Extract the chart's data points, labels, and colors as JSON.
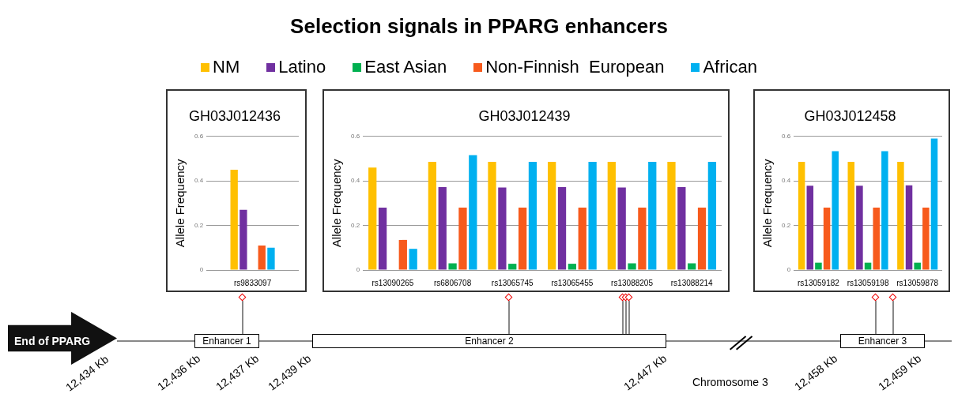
{
  "chart_data": [
    {
      "type": "other",
      "title": "Selection signals in PPARG enhancers"
    },
    {
      "type": "bar",
      "title": "GH03J012436",
      "ylabel": "Allele Frequency",
      "categories": [
        "rs9833097"
      ],
      "ylim": [
        0,
        0.6
      ],
      "yticks": [
        0,
        0.2,
        0.4,
        0.6
      ],
      "grid": "y",
      "legend": "top",
      "series": [
        {
          "name": "NM",
          "color": "#ffc000",
          "values": [
            0.45
          ]
        },
        {
          "name": "Latino",
          "color": "#7030a0",
          "values": [
            0.27
          ]
        },
        {
          "name": "East Asian",
          "color": "#00b050",
          "values": [
            null
          ]
        },
        {
          "name": "Non-Finnish  European",
          "color": "#f75a1c",
          "values": [
            0.11
          ]
        },
        {
          "name": "African",
          "color": "#00b0f0",
          "values": [
            0.1
          ]
        }
      ]
    },
    {
      "type": "bar",
      "title": "GH03J012439",
      "ylabel": "Allele Frequency",
      "categories": [
        "rs13090265",
        "rs6806708",
        "rs13065745",
        "rs13065455",
        "rs13088205",
        "rs13088214"
      ],
      "ylim": [
        0,
        0.6
      ],
      "yticks": [
        0,
        0.2,
        0.4,
        0.6
      ],
      "grid": "y",
      "series": [
        {
          "color": "#ffc000",
          "values": [
            0.46,
            0.485,
            0.485,
            0.485,
            0.485,
            0.485
          ]
        },
        {
          "color": "#7030a0",
          "values": [
            0.28,
            0.372,
            0.37,
            0.372,
            0.37,
            0.372
          ]
        },
        {
          "color": "#00b050",
          "values": [
            null,
            0.03,
            0.028,
            0.028,
            0.03,
            0.03
          ]
        },
        {
          "color": "#f75a1c",
          "values": [
            0.135,
            0.28,
            0.28,
            0.28,
            0.28,
            0.28
          ]
        },
        {
          "color": "#00b0f0",
          "values": [
            0.095,
            0.515,
            0.485,
            0.485,
            0.485,
            0.485
          ]
        }
      ]
    },
    {
      "type": "bar",
      "title": "GH03J012458",
      "ylabel": "Allele Frequency",
      "categories": [
        "rs13059182",
        "rs13059198",
        "rs13059878"
      ],
      "ylim": [
        0,
        0.6
      ],
      "yticks": [
        0,
        0.2,
        0.4,
        0.6
      ],
      "grid": "y",
      "series": [
        {
          "color": "#ffc000",
          "values": [
            0.485,
            0.485,
            0.485
          ]
        },
        {
          "color": "#7030a0",
          "values": [
            0.378,
            0.378,
            0.38
          ]
        },
        {
          "color": "#00b050",
          "values": [
            0.033,
            0.033,
            0.033
          ]
        },
        {
          "color": "#f75a1c",
          "values": [
            0.28,
            0.28,
            0.28
          ]
        },
        {
          "color": "#00b0f0",
          "values": [
            0.533,
            0.533,
            0.59
          ]
        }
      ]
    },
    {
      "type": "other",
      "annotations": [
        "End of PPARG",
        "Enhancer 1",
        "Enhancer 2",
        "Enhancer 3",
        "12,434 Kb",
        "12,436 Kb",
        "12,437 Kb",
        "12,439 Kb",
        "12,447 Kb",
        "Chromosome 3",
        "12,458 Kb",
        "12,459 Kb"
      ]
    }
  ]
}
